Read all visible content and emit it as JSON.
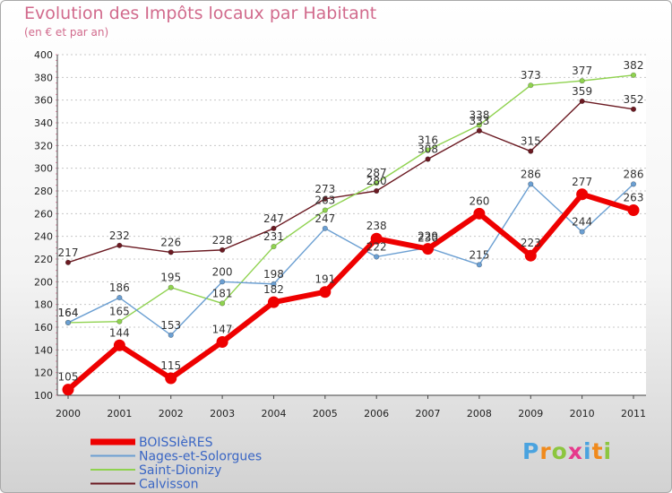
{
  "chart_data": {
    "type": "line",
    "title": "Evolution des Impôts locaux par Habitant",
    "subtitle": "(en € et par an)",
    "xlabel": "",
    "ylabel": "",
    "x": [
      "2000",
      "2001",
      "2002",
      "2003",
      "2004",
      "2005",
      "2006",
      "2007",
      "2008",
      "2009",
      "2010",
      "2011"
    ],
    "ylim": [
      100,
      400
    ],
    "ymajor": [
      100,
      120,
      140,
      160,
      180,
      200,
      220,
      240,
      260,
      280,
      300,
      320,
      340,
      360,
      380,
      400
    ],
    "grid": "horizontal-dashed",
    "legend_position": "bottom-left",
    "series": [
      {
        "name": "Calvisson",
        "color": "#6b1a22",
        "width": 1.4,
        "marker": 2.8,
        "values": [
          217,
          232,
          226,
          228,
          247,
          273,
          280,
          308,
          333,
          315,
          359,
          352
        ],
        "labels": [
          "217",
          "232",
          "226",
          "228",
          "247",
          "273",
          "280",
          "308",
          "333",
          "315",
          "359",
          "352"
        ]
      },
      {
        "name": "Saint-Dionizy",
        "color": "#8fd24f",
        "width": 1.4,
        "marker": 2.8,
        "values": [
          164,
          165,
          195,
          181,
          231,
          263,
          287,
          316,
          338,
          373,
          377,
          382
        ],
        "labels": [
          "164",
          "165",
          "195",
          "181",
          "231",
          "263",
          "287",
          "316",
          "338",
          "373",
          "377",
          "382"
        ]
      },
      {
        "name": "Nages-et-Solorgues",
        "color": "#6b9fd2",
        "width": 1.4,
        "marker": 2.8,
        "values": [
          164,
          186,
          153,
          200,
          198,
          247,
          222,
          230,
          215,
          286,
          244,
          286
        ],
        "labels": [
          "164",
          "186",
          "153",
          "200",
          "198",
          "247",
          "222",
          "230",
          "215",
          "286",
          "244",
          "286"
        ]
      },
      {
        "name": "BOISSIèRES",
        "color": "#ee0000",
        "width": 6,
        "marker": 6.5,
        "values": [
          105,
          144,
          115,
          147,
          182,
          191,
          238,
          229,
          260,
          223,
          277,
          263
        ],
        "labels": [
          "105",
          "144",
          "115",
          "147",
          "182",
          "191",
          "238",
          "229",
          "260",
          "223",
          "277",
          "263"
        ]
      }
    ]
  },
  "legend_order": [
    "BOISSIèRES",
    "Nages-et-Solorgues",
    "Saint-Dionizy",
    "Calvisson"
  ],
  "logo": {
    "letters": [
      "P",
      "r",
      "o",
      "x",
      "i",
      "t",
      "i"
    ],
    "colors": [
      "#4aa3df",
      "#f08a1c",
      "#8cc63f",
      "#e63a8c",
      "#4aa3df",
      "#f08a1c",
      "#8cc63f"
    ]
  }
}
